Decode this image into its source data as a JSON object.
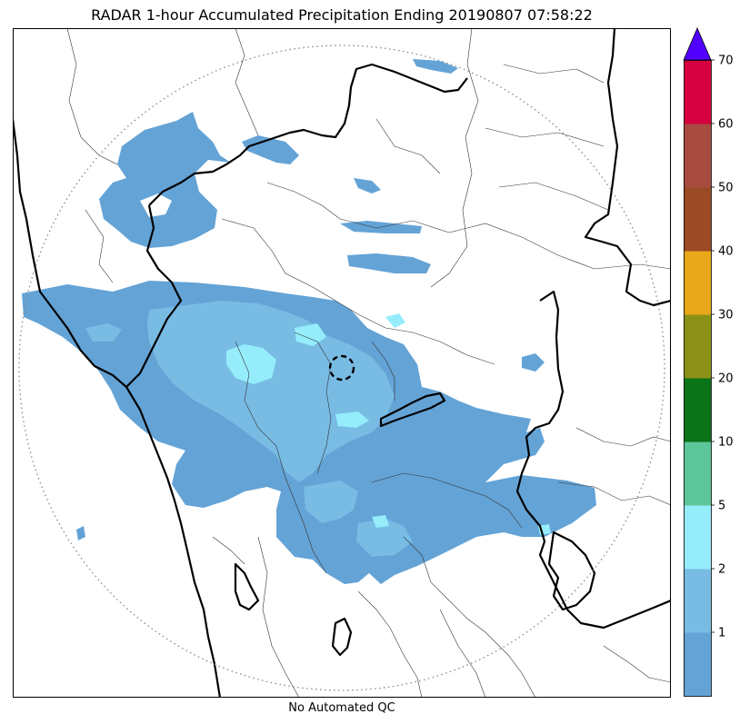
{
  "title": "RADAR 1-hour Accumulated Precipitation Ending 20190807 07:58:22",
  "footer": "No Automated QC",
  "colorbar": {
    "levels": [
      0,
      1,
      2,
      5,
      10,
      20,
      30,
      40,
      50,
      60,
      70
    ],
    "tick_labels": [
      "1",
      "2",
      "5",
      "10",
      "20",
      "30",
      "40",
      "50",
      "60",
      "70"
    ],
    "colors": [
      "#64a3d6",
      "#78bce4",
      "#95edfc",
      "#5cc599",
      "#0b7318",
      "#8b9117",
      "#e7a81a",
      "#9a4b26",
      "#a74a40",
      "#d5003f"
    ],
    "overflow_color": "#5100ff",
    "extend": "max"
  },
  "map": {
    "range_ring": "dotted",
    "radar_site_marker": "dashed-circle",
    "layers": [
      "precipitation",
      "coastline",
      "state-borders",
      "district-boundaries"
    ]
  }
}
